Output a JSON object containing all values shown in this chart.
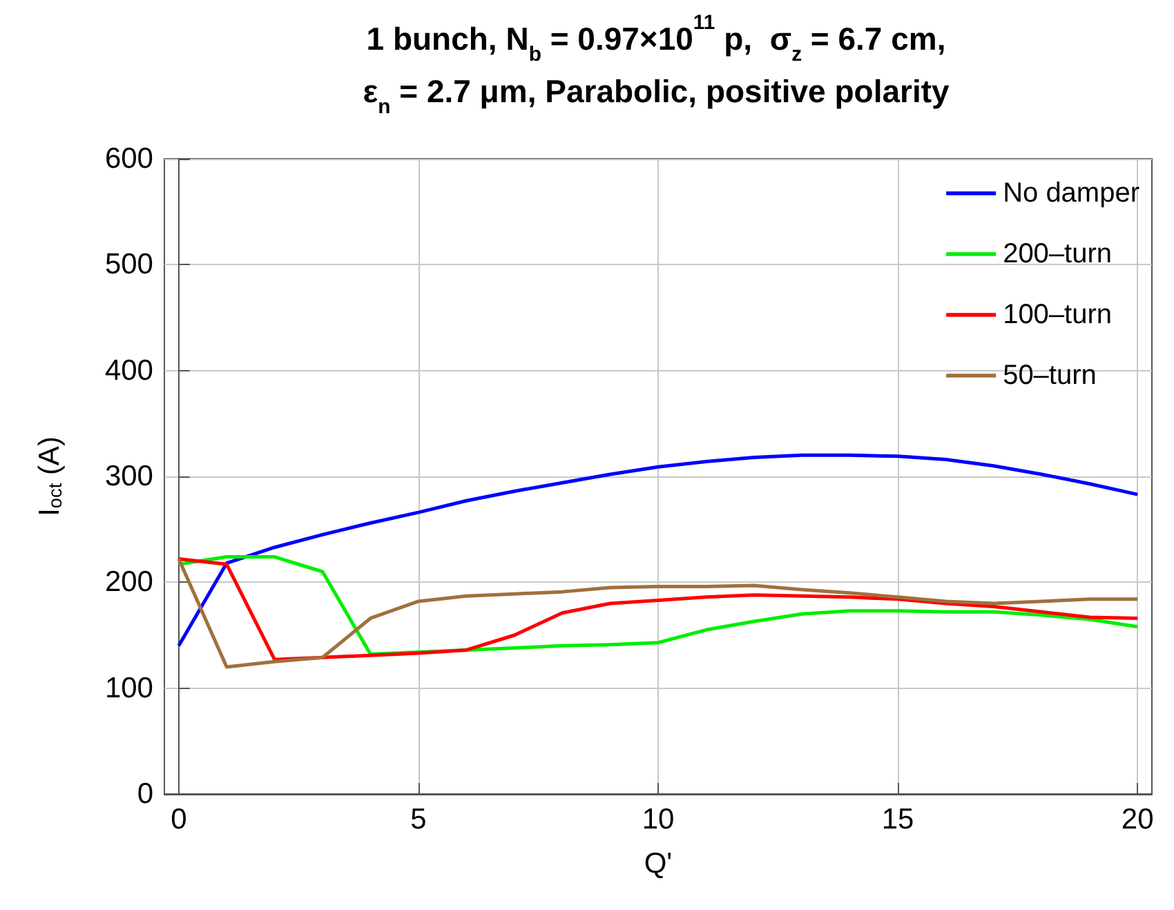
{
  "chart_data": {
    "type": "line",
    "title": "1 bunch, N$_{b}$ = 0.97×10$^{11}$ p,  σ$_{z}$ = 6.7 cm,\nε$_{n}$ = 2.7 μm, Parabolic, positive polarity",
    "xlabel": "Q'",
    "ylabel": "I$_{oct}$ (A)",
    "x": [
      0,
      1,
      2,
      3,
      4,
      5,
      6,
      7,
      8,
      9,
      10,
      11,
      12,
      13,
      14,
      15,
      16,
      17,
      18,
      19,
      20
    ],
    "series": [
      {
        "name": "No damper",
        "color": "#0000ff",
        "values": [
          140,
          218,
          233,
          245,
          256,
          266,
          277,
          286,
          294,
          302,
          309,
          314,
          318,
          320,
          320,
          319,
          316,
          310,
          302,
          293,
          283
        ]
      },
      {
        "name": "200–turn",
        "color": "#00ee00",
        "values": [
          217,
          224,
          224,
          210,
          132,
          134,
          136,
          138,
          140,
          141,
          143,
          155,
          163,
          170,
          173,
          173,
          172,
          172,
          169,
          165,
          158
        ]
      },
      {
        "name": "100–turn",
        "color": "#ff0000",
        "values": [
          222,
          217,
          127,
          129,
          131,
          133,
          136,
          150,
          171,
          180,
          183,
          186,
          188,
          187,
          186,
          184,
          180,
          177,
          172,
          167,
          166
        ]
      },
      {
        "name": "50–turn",
        "color": "#a0703c",
        "values": [
          222,
          120,
          125,
          129,
          166,
          182,
          187,
          189,
          191,
          195,
          196,
          196,
          197,
          193,
          190,
          186,
          182,
          180,
          182,
          184,
          184
        ]
      }
    ],
    "xlim": [
      -0.3,
      20.3
    ],
    "xticks": [
      0,
      5,
      10,
      15,
      20
    ],
    "ylim": [
      0,
      600
    ],
    "yticks": [
      0,
      100,
      200,
      300,
      400,
      500,
      600
    ],
    "grid": true,
    "legend": "top right",
    "marker": "none",
    "line_style": "solid"
  }
}
